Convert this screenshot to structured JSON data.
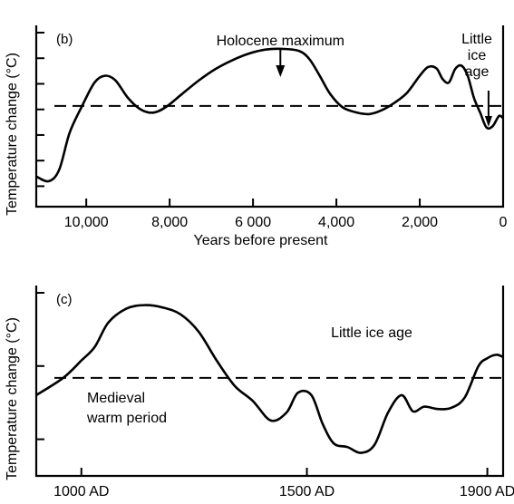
{
  "chart_data": [
    {
      "type": "line",
      "panel_label": "(b)",
      "xlabel": "Years before present",
      "ylabel": "Temperature change (°C)",
      "x_ticks": [
        "10,000",
        "8,000",
        "6 000",
        "4,000",
        "2,000",
        "0"
      ],
      "x_tick_values": [
        10000,
        8000,
        6000,
        4000,
        2000,
        0
      ],
      "xlim": [
        11200,
        0
      ],
      "xlim_note": "reversed",
      "y_ticks_unlabeled": 7,
      "baseline": "dashed",
      "annotations": [
        {
          "text": "Holocene maximum",
          "x": 5300,
          "arrow": true
        },
        {
          "text": "Little ice age",
          "lines": [
            "Little",
            "ice",
            "age"
          ],
          "x": 350,
          "arrow": true
        }
      ],
      "series": [
        {
          "x": [
            11200,
            10900,
            10650,
            10400,
            10100,
            9800,
            9550,
            9300,
            9000,
            8700,
            8400,
            8100,
            7700,
            7300,
            6900,
            6500,
            6100,
            5700,
            5300,
            4900,
            4650,
            4400,
            4150,
            3850,
            3500,
            3200,
            2900,
            2600,
            2300,
            2000,
            1800,
            1600,
            1450,
            1300,
            1150,
            1000,
            850,
            700,
            550,
            400,
            250,
            100,
            0
          ],
          "y": [
            -1.05,
            -1.12,
            -0.95,
            -0.4,
            0.0,
            0.35,
            0.45,
            0.38,
            0.12,
            -0.05,
            -0.1,
            -0.02,
            0.18,
            0.38,
            0.55,
            0.68,
            0.78,
            0.84,
            0.85,
            0.82,
            0.7,
            0.45,
            0.18,
            -0.02,
            -0.1,
            -0.12,
            -0.06,
            0.05,
            0.2,
            0.45,
            0.58,
            0.56,
            0.4,
            0.35,
            0.55,
            0.6,
            0.45,
            0.12,
            -0.1,
            -0.32,
            -0.3,
            -0.15,
            -0.18
          ]
        }
      ]
    },
    {
      "type": "line",
      "panel_label": "(c)",
      "xlabel": "",
      "ylabel": "Temperature change (°C)",
      "x_ticks": [
        "1000 AD",
        "1500 AD",
        "1900 AD"
      ],
      "x_tick_values": [
        1000,
        1500,
        1900
      ],
      "xlim": [
        900,
        1935
      ],
      "y_ticks_unlabeled": 3,
      "baseline": "dashed",
      "annotations": [
        {
          "text": "Little ice age"
        },
        {
          "text": "Medieval warm period",
          "lines": [
            "Medieval",
            "warm period"
          ]
        }
      ],
      "series": [
        {
          "x": [
            900,
            960,
            1000,
            1030,
            1060,
            1100,
            1140,
            1180,
            1220,
            1260,
            1300,
            1340,
            1380,
            1420,
            1455,
            1480,
            1510,
            1535,
            1560,
            1590,
            1620,
            1650,
            1680,
            1710,
            1735,
            1760,
            1790,
            1820,
            1850,
            1880,
            1900,
            1920,
            1935
          ],
          "y": [
            -0.3,
            -0.15,
            0.0,
            0.12,
            0.33,
            0.45,
            0.48,
            0.46,
            0.4,
            0.25,
            0.0,
            -0.22,
            -0.35,
            -0.52,
            -0.45,
            -0.28,
            -0.3,
            -0.55,
            -0.72,
            -0.75,
            -0.8,
            -0.73,
            -0.45,
            -0.3,
            -0.44,
            -0.4,
            -0.42,
            -0.41,
            -0.32,
            -0.05,
            0.02,
            0.05,
            0.03
          ]
        }
      ]
    }
  ]
}
